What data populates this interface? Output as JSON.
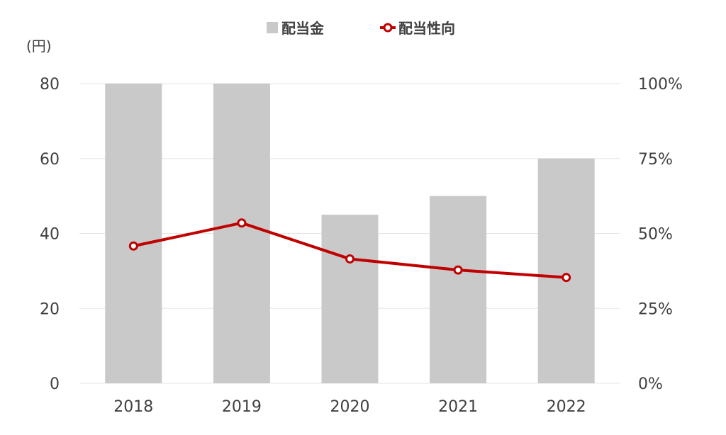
{
  "chart_data": {
    "type": "bar",
    "categories": [
      "2018",
      "2019",
      "2020",
      "2021",
      "2022"
    ],
    "series": [
      {
        "name": "配当金",
        "type": "bar",
        "axis": "left",
        "values": [
          80,
          80,
          45,
          50,
          60
        ]
      },
      {
        "name": "配当性向",
        "type": "line",
        "axis": "right",
        "values": [
          45.8,
          53.5,
          41.5,
          37.8,
          35.3
        ]
      }
    ],
    "y_left": {
      "unit": "(円)",
      "range": [
        0,
        80
      ],
      "ticks": [
        "0",
        "20",
        "40",
        "60",
        "80"
      ]
    },
    "y_right": {
      "range": [
        0,
        100
      ],
      "ticks": [
        "0%",
        "25%",
        "50%",
        "75%",
        "100%"
      ]
    },
    "legend_position": "top-center",
    "grid": true,
    "colors": {
      "bar": "#c9c9c9",
      "line": "#c00000",
      "grid": "#e6e6e6",
      "text": "#404040"
    }
  }
}
